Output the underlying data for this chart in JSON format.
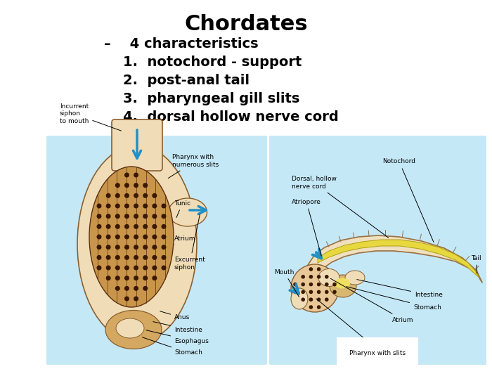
{
  "title": "Chordates",
  "title_fontsize": 22,
  "title_fontweight": "bold",
  "bg_color": "#ffffff",
  "diagram_bg": "#c5e8f7",
  "bullet_intro": "–    4 characteristics",
  "bullet_intro_fontsize": 14,
  "items": [
    "1.  notochord - support",
    "2.  post-anal tail",
    "3.  pharyngeal gill slits",
    "4.  dorsal hollow nerve cord"
  ],
  "item_fontsize": 14,
  "label_fs": 6.5,
  "tan_light": "#f0ddb8",
  "tan_outer": "#e8c898",
  "tan_dark": "#c8954a",
  "tan_mid": "#d4a860",
  "brown_edge": "#8a6030",
  "dot_color": "#3a1800",
  "blue_arrow": "#2090c8",
  "body_color": "#f0e0c0",
  "notochord_color": "#e8d840",
  "muscle_color": "#a07840"
}
